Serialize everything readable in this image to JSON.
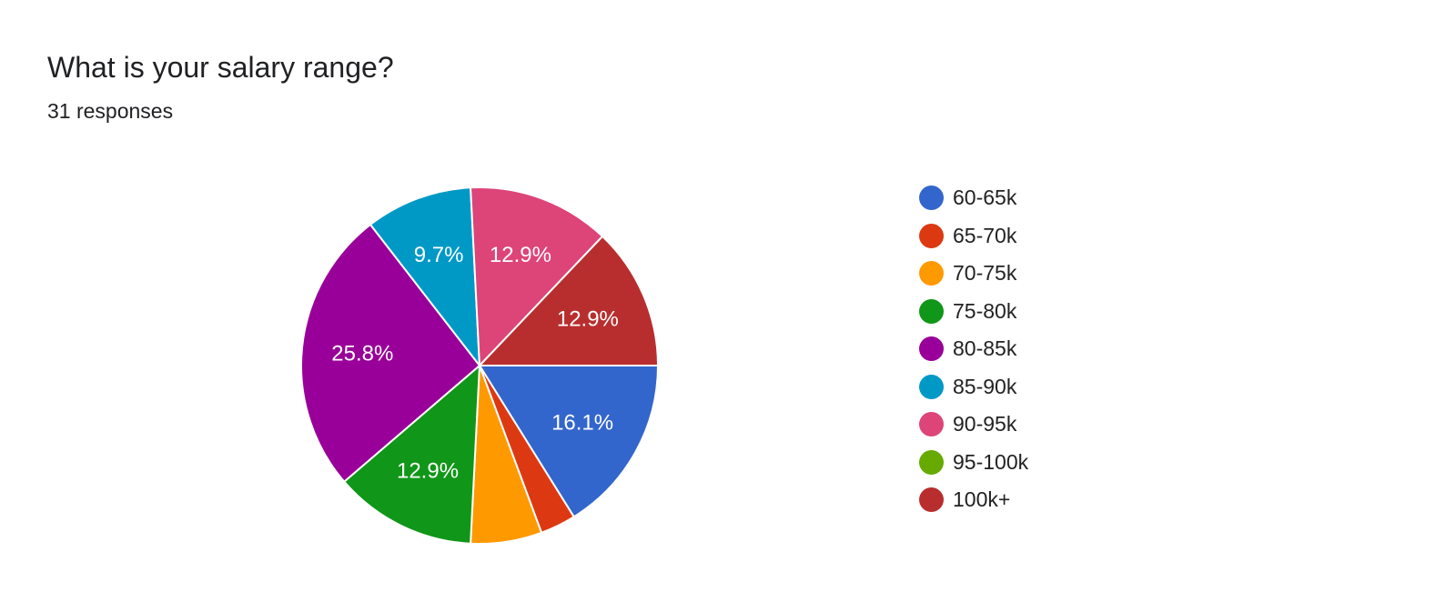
{
  "header": {
    "title": "What is your salary range?",
    "responses": "31 responses"
  },
  "chart_data": {
    "type": "pie",
    "total_responses": 31,
    "categories": [
      "60-65k",
      "65-70k",
      "70-75k",
      "75-80k",
      "80-85k",
      "85-90k",
      "90-95k",
      "95-100k",
      "100k+"
    ],
    "values": [
      5,
      1,
      2,
      4,
      8,
      3,
      4,
      0,
      4
    ],
    "percent_labels": [
      "16.1%",
      "",
      "",
      "12.9%",
      "25.8%",
      "9.7%",
      "12.9%",
      "",
      "12.9%"
    ],
    "colors": [
      "#3366cc",
      "#dc3912",
      "#ff9900",
      "#109618",
      "#990099",
      "#0099c6",
      "#dd4477",
      "#66aa00",
      "#b82e2e"
    ],
    "start_angle": "3 o'clock",
    "direction": "clockwise",
    "legend_position": "right"
  }
}
